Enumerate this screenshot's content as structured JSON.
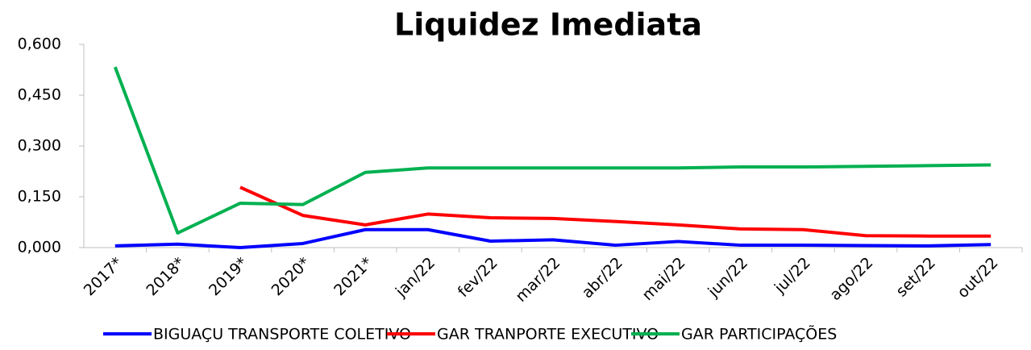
{
  "chart_data": {
    "type": "line",
    "title": "Liquidez Imediata",
    "categories": [
      "2017*",
      "2018*",
      "2019*",
      "2020*",
      "2021*",
      "jan/22",
      "fev/22",
      "mar/22",
      "abr/22",
      "mai/22",
      "jun/22",
      "jul/22",
      "ago/22",
      "set/22",
      "out/22"
    ],
    "series": [
      {
        "name": "BIGUAÇU TRANSPORTE COLETIVO",
        "color": "#0000ff",
        "values": [
          0.005,
          0.01,
          0.0,
          0.012,
          0.053,
          0.053,
          0.019,
          0.023,
          0.007,
          0.018,
          0.007,
          0.007,
          0.006,
          0.005,
          0.009
        ]
      },
      {
        "name": "GAR TRANPORTE EXECUTIVO",
        "color": "#ff0000",
        "values": [
          null,
          null,
          0.178,
          0.095,
          0.067,
          0.099,
          0.088,
          0.086,
          0.077,
          0.067,
          0.055,
          0.053,
          0.035,
          0.034,
          0.034
        ]
      },
      {
        "name": "GAR PARTICIPAÇÕES",
        "color": "#00b050",
        "values": [
          0.533,
          0.043,
          0.131,
          0.127,
          0.222,
          0.235,
          0.235,
          0.235,
          0.235,
          0.235,
          0.238,
          0.238,
          0.24,
          0.242,
          0.244
        ]
      }
    ],
    "ylim": [
      0,
      0.6
    ],
    "yticks": [
      {
        "value": 0,
        "label": "0,000"
      },
      {
        "value": 0.15,
        "label": "0,150"
      },
      {
        "value": 0.3,
        "label": "0,300"
      },
      {
        "value": 0.45,
        "label": "0,450"
      },
      {
        "value": 0.6,
        "label": "0,600"
      }
    ],
    "legend": "bottom"
  }
}
